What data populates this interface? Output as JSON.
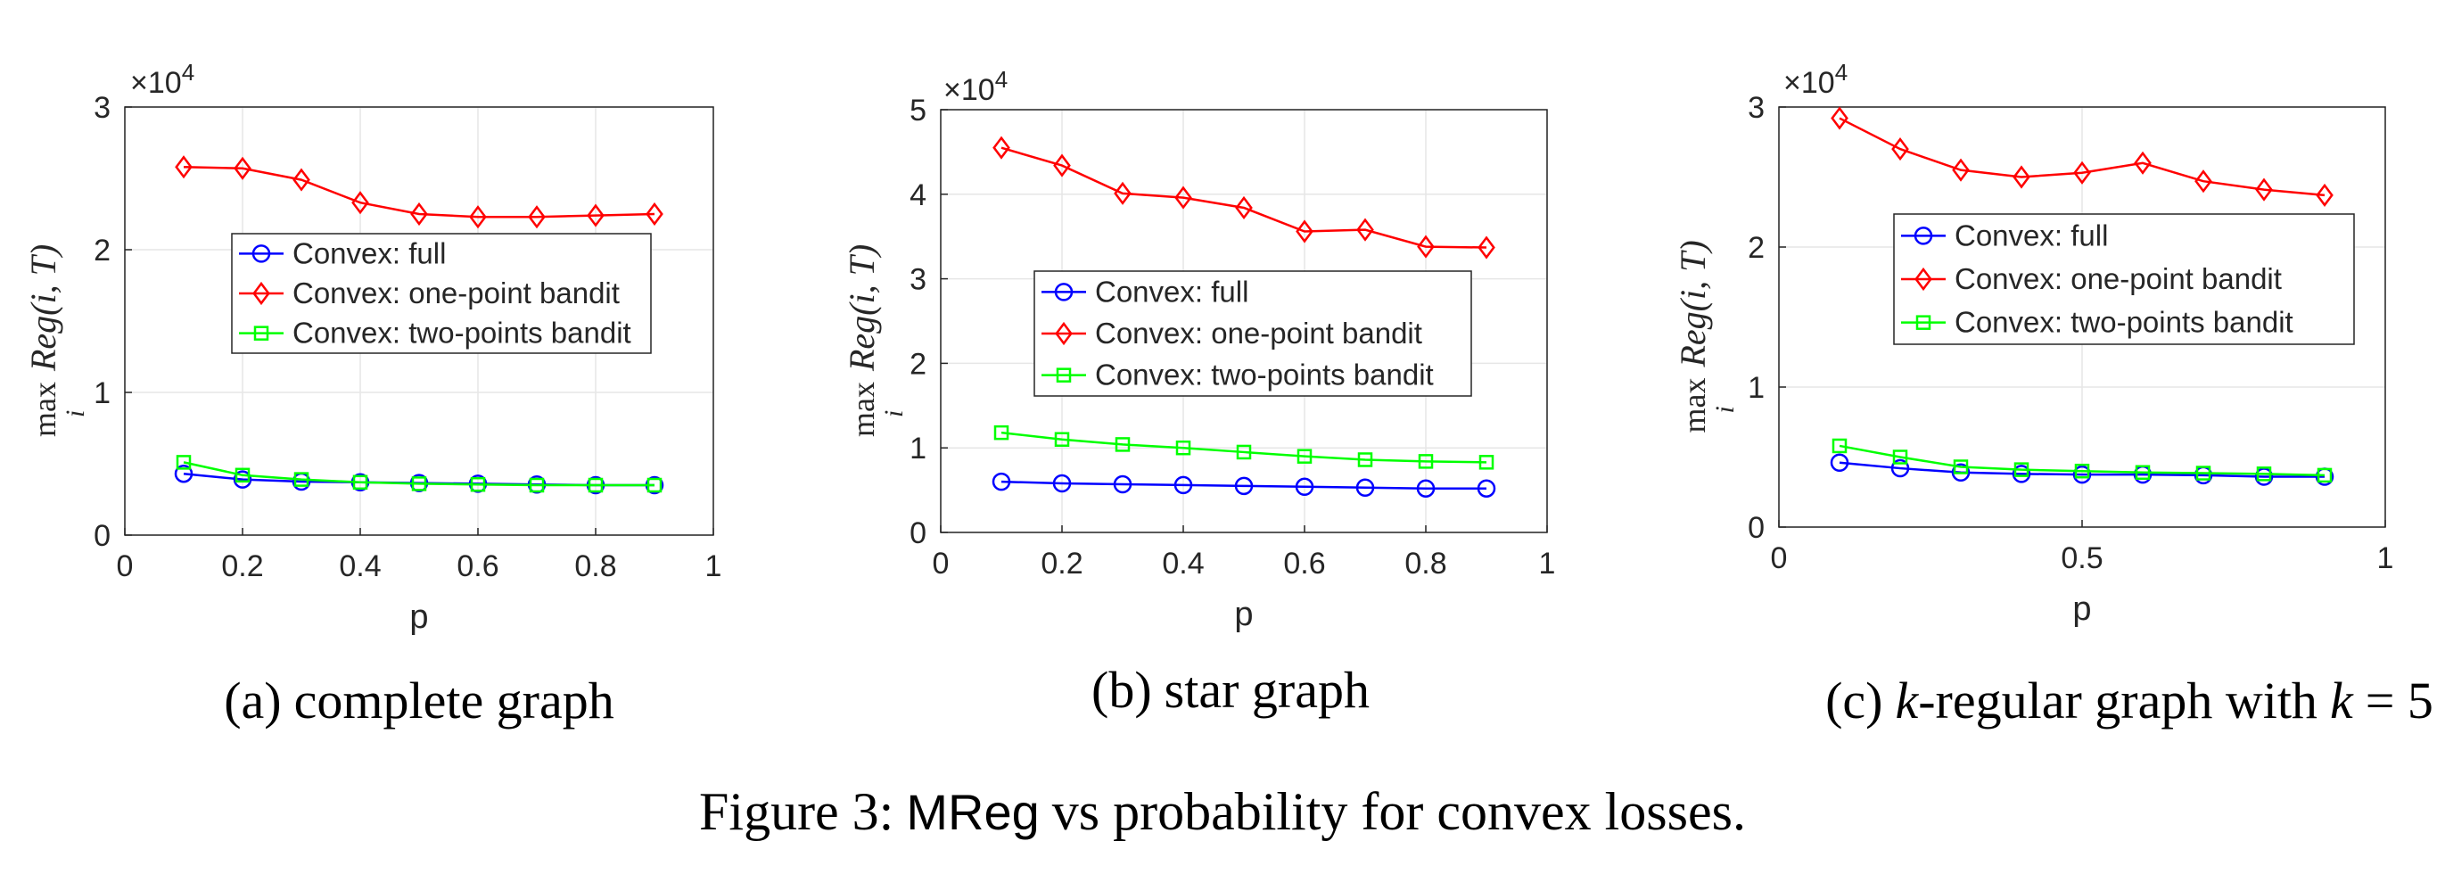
{
  "figure_caption": {
    "prefix": "Figure 3:",
    "metric": "MReg",
    "suffix": "vs probability for convex losses."
  },
  "ylabel_parts": {
    "max": "max",
    "sub": "i",
    "expr": "Reg(i, T)"
  },
  "series_style": [
    {
      "name": "Convex: full",
      "color": "#0000ff",
      "marker": "circle"
    },
    {
      "name": "Convex: one-point bandit",
      "color": "#ff0000",
      "marker": "diamond"
    },
    {
      "name": "Convex: two-points bandit",
      "color": "#00ff00",
      "marker": "square"
    }
  ],
  "chart_data": [
    {
      "type": "line",
      "title": "",
      "caption_label": "(a)",
      "caption_text": "complete graph",
      "xlabel": "p",
      "ylabel": "max_i Reg(i,T)",
      "xlim": [
        0,
        1
      ],
      "ylim": [
        0,
        3
      ],
      "y_exponent": "×10^4",
      "x_ticks": [
        0,
        0.2,
        0.4,
        0.6,
        0.8,
        1
      ],
      "x_tick_labels": [
        "0",
        "0.2",
        "0.4",
        "0.6",
        "0.8",
        "1"
      ],
      "y_ticks": [
        0,
        1,
        2,
        3
      ],
      "y_tick_labels": [
        "0",
        "1",
        "2",
        "3"
      ],
      "grid": true,
      "legend_position": "center",
      "x": [
        0.1,
        0.2,
        0.3,
        0.4,
        0.5,
        0.6,
        0.7,
        0.8,
        0.9
      ],
      "series": [
        {
          "name": "Convex: full",
          "values": [
            0.43,
            0.39,
            0.375,
            0.37,
            0.365,
            0.36,
            0.355,
            0.35,
            0.35
          ]
        },
        {
          "name": "Convex: one-point bandit",
          "values": [
            2.58,
            2.57,
            2.49,
            2.33,
            2.25,
            2.23,
            2.23,
            2.24,
            2.25
          ]
        },
        {
          "name": "Convex: two-points bandit",
          "values": [
            0.51,
            0.42,
            0.39,
            0.37,
            0.36,
            0.355,
            0.35,
            0.35,
            0.35
          ]
        }
      ]
    },
    {
      "type": "line",
      "title": "",
      "caption_label": "(b)",
      "caption_text": "star graph",
      "xlabel": "p",
      "ylabel": "max_i Reg(i,T)",
      "xlim": [
        0,
        1
      ],
      "ylim": [
        0,
        5
      ],
      "y_exponent": "×10^4",
      "x_ticks": [
        0,
        0.2,
        0.4,
        0.6,
        0.8,
        1
      ],
      "x_tick_labels": [
        "0",
        "0.2",
        "0.4",
        "0.6",
        "0.8",
        "1"
      ],
      "y_ticks": [
        0,
        1,
        2,
        3,
        4,
        5
      ],
      "y_tick_labels": [
        "0",
        "1",
        "2",
        "3",
        "4",
        "5"
      ],
      "grid": true,
      "legend_position": "center",
      "x": [
        0.1,
        0.2,
        0.3,
        0.4,
        0.5,
        0.6,
        0.7,
        0.8,
        0.9
      ],
      "series": [
        {
          "name": "Convex: full",
          "values": [
            0.6,
            0.58,
            0.57,
            0.56,
            0.55,
            0.54,
            0.53,
            0.52,
            0.52
          ]
        },
        {
          "name": "Convex: one-point bandit",
          "values": [
            4.55,
            4.34,
            4.01,
            3.96,
            3.84,
            3.56,
            3.58,
            3.38,
            3.37
          ]
        },
        {
          "name": "Convex: two-points bandit",
          "values": [
            1.18,
            1.1,
            1.04,
            1.0,
            0.95,
            0.9,
            0.86,
            0.84,
            0.83
          ]
        }
      ]
    },
    {
      "type": "line",
      "title": "",
      "caption_label": "(c)",
      "caption_text": "-regular graph with",
      "caption_k": "k",
      "caption_eq": "= 5",
      "xlabel": "p",
      "ylabel": "max_i Reg(i,T)",
      "xlim": [
        0,
        1
      ],
      "ylim": [
        0,
        3
      ],
      "y_exponent": "×10^4",
      "x_ticks": [
        0,
        0.5,
        1
      ],
      "x_tick_labels": [
        "0",
        "0.5",
        "1"
      ],
      "y_ticks": [
        0,
        1,
        2,
        3
      ],
      "y_tick_labels": [
        "0",
        "1",
        "2",
        "3"
      ],
      "grid": true,
      "legend_position": "center-right",
      "x": [
        0.1,
        0.2,
        0.3,
        0.4,
        0.5,
        0.6,
        0.7,
        0.8,
        0.9
      ],
      "series": [
        {
          "name": "Convex: full",
          "values": [
            0.46,
            0.42,
            0.39,
            0.38,
            0.375,
            0.375,
            0.37,
            0.36,
            0.36
          ]
        },
        {
          "name": "Convex: one-point bandit",
          "values": [
            2.92,
            2.7,
            2.55,
            2.5,
            2.53,
            2.6,
            2.47,
            2.41,
            2.37
          ]
        },
        {
          "name": "Convex: two-points bandit",
          "values": [
            0.58,
            0.5,
            0.43,
            0.41,
            0.4,
            0.39,
            0.385,
            0.38,
            0.37
          ]
        }
      ]
    }
  ]
}
